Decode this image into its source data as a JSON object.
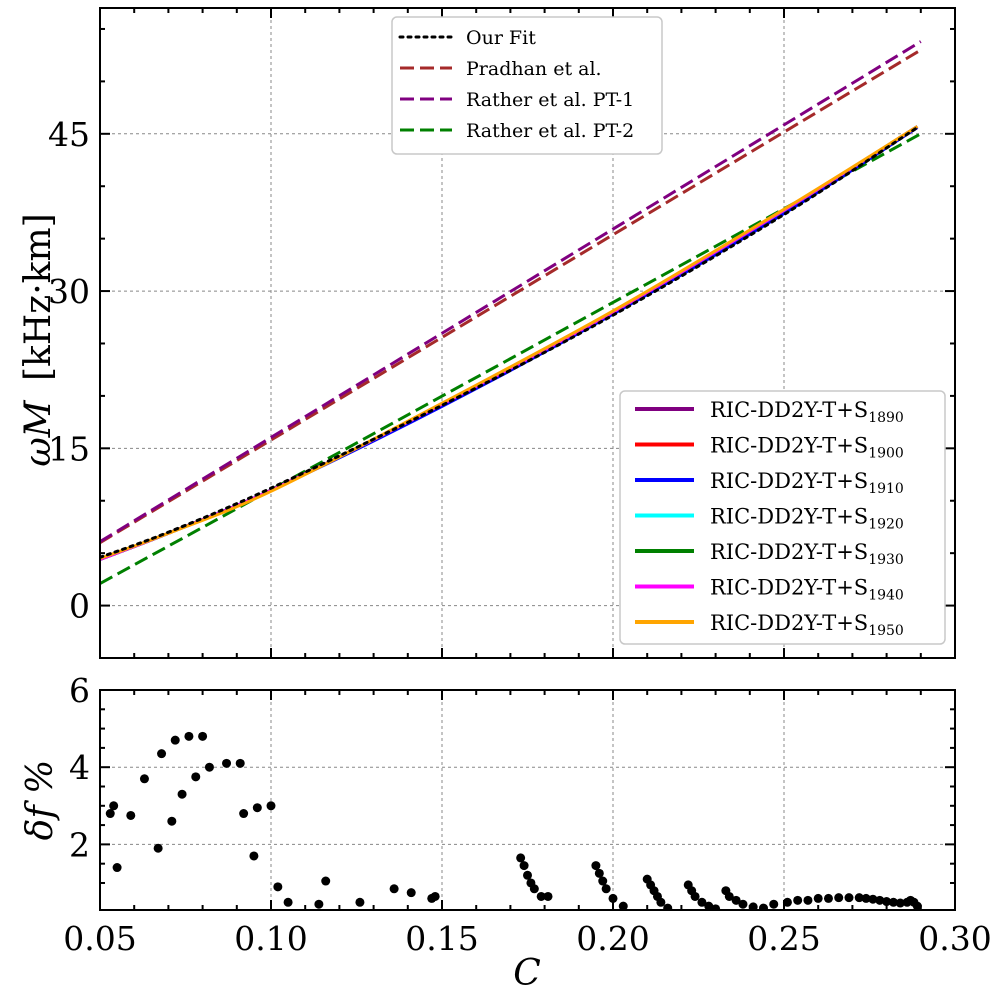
{
  "chart_data": [
    {
      "type": "line",
      "panel": "top",
      "xlabel": "C",
      "ylabel_symbol": "ωM",
      "ylabel_unit": "[kHz·km]",
      "xlim": [
        0.05,
        0.3
      ],
      "ylim": [
        -5,
        57
      ],
      "xticks": [
        0.05,
        0.1,
        0.15,
        0.2,
        0.25,
        0.3
      ],
      "yticks": [
        0,
        15,
        30,
        45
      ],
      "ytick_labels": [
        "0",
        "15",
        "30",
        "45"
      ],
      "grid": true,
      "legend_top": [
        {
          "label": "Our Fit",
          "color": "#000000",
          "style": "dotted"
        },
        {
          "label": "Pradhan et al.",
          "color": "#a52a2a",
          "style": "dashed"
        },
        {
          "label": "Rather et al. PT-1",
          "color": "#800080",
          "style": "dashed"
        },
        {
          "label": "Rather et al. PT-2",
          "color": "#008000",
          "style": "dashed"
        }
      ],
      "legend_right": [
        {
          "label": "RIC-DD2Y-T+S",
          "sub": "1890",
          "color": "#800080"
        },
        {
          "label": "RIC-DD2Y-T+S",
          "sub": "1900",
          "color": "#ff0000"
        },
        {
          "label": "RIC-DD2Y-T+S",
          "sub": "1910",
          "color": "#0000ff"
        },
        {
          "label": "RIC-DD2Y-T+S",
          "sub": "1920",
          "color": "#00ffff"
        },
        {
          "label": "RIC-DD2Y-T+S",
          "sub": "1930",
          "color": "#008000"
        },
        {
          "label": "RIC-DD2Y-T+S",
          "sub": "1940",
          "color": "#ff00ff"
        },
        {
          "label": "RIC-DD2Y-T+S",
          "sub": "1950",
          "color": "#ffa500"
        }
      ],
      "series": [
        {
          "name": "Pradhan et al.",
          "x": [
            0.05,
            0.29
          ],
          "y": [
            6.0,
            53.0
          ],
          "color": "#a52a2a",
          "style": "dashed"
        },
        {
          "name": "Rather et al. PT-1",
          "x": [
            0.05,
            0.29
          ],
          "y": [
            6.1,
            53.8
          ],
          "color": "#800080",
          "style": "dashed"
        },
        {
          "name": "Rather et al. PT-2",
          "x": [
            0.05,
            0.29
          ],
          "y": [
            2.1,
            45.0
          ],
          "color": "#008000",
          "style": "dashed"
        },
        {
          "name": "RIC-DD2Y-T+S1890",
          "x": [
            0.05,
            0.07,
            0.1,
            0.15,
            0.2,
            0.25,
            0.289
          ],
          "y": [
            4.4,
            6.9,
            11.0,
            19.1,
            27.9,
            37.5,
            45.6
          ],
          "color": "#800080",
          "style": "solid"
        },
        {
          "name": "RIC-DD2Y-T+S1900",
          "x": [
            0.05,
            0.07,
            0.1,
            0.15,
            0.2,
            0.25,
            0.289
          ],
          "y": [
            4.4,
            6.9,
            11.0,
            19.2,
            28.0,
            37.7,
            45.7
          ],
          "color": "#ff0000",
          "style": "solid"
        },
        {
          "name": "RIC-DD2Y-T+S1910",
          "x": [
            0.05,
            0.07,
            0.1,
            0.15,
            0.2,
            0.25,
            0.289
          ],
          "y": [
            4.4,
            6.9,
            11.0,
            19.0,
            27.8,
            37.4,
            45.6
          ],
          "color": "#0000ff",
          "style": "solid"
        },
        {
          "name": "RIC-DD2Y-T+S1920",
          "x": [
            0.05,
            0.07,
            0.1,
            0.15,
            0.2,
            0.25,
            0.289
          ],
          "y": [
            4.4,
            6.9,
            11.0,
            19.2,
            28.0,
            37.7,
            45.7
          ],
          "color": "#00ffff",
          "style": "solid"
        },
        {
          "name": "RIC-DD2Y-T+S1930",
          "x": [
            0.05,
            0.07,
            0.1,
            0.15,
            0.2,
            0.25,
            0.289
          ],
          "y": [
            4.4,
            6.9,
            11.0,
            19.2,
            28.0,
            37.7,
            45.7
          ],
          "color": "#008000",
          "style": "solid"
        },
        {
          "name": "RIC-DD2Y-T+S1940",
          "x": [
            0.05,
            0.07,
            0.1,
            0.15,
            0.2,
            0.25,
            0.289
          ],
          "y": [
            4.4,
            6.9,
            11.0,
            19.2,
            28.0,
            37.7,
            45.7
          ],
          "color": "#ff00ff",
          "style": "solid"
        },
        {
          "name": "RIC-DD2Y-T+S1950",
          "x": [
            0.05,
            0.07,
            0.1,
            0.15,
            0.2,
            0.25,
            0.289
          ],
          "y": [
            4.5,
            6.9,
            10.9,
            19.3,
            28.1,
            37.8,
            45.7
          ],
          "color": "#ffa500",
          "style": "solid"
        },
        {
          "name": "Our Fit",
          "x": [
            0.05,
            0.07,
            0.1,
            0.15,
            0.2,
            0.25,
            0.289
          ],
          "y": [
            4.6,
            7.0,
            11.2,
            19.1,
            27.7,
            37.3,
            45.6
          ],
          "color": "#000000",
          "style": "dotted"
        }
      ]
    },
    {
      "type": "scatter",
      "panel": "bottom",
      "xlabel": "C",
      "ylabel_symbol": "δf %",
      "xlim": [
        0.05,
        0.3
      ],
      "ylim": [
        0.3,
        6.0
      ],
      "xticks": [
        0.05,
        0.1,
        0.15,
        0.2,
        0.25,
        0.3
      ],
      "xtick_labels": [
        "0.05",
        "0.10",
        "0.15",
        "0.20",
        "0.25",
        "0.30"
      ],
      "yticks": [
        2,
        4,
        6
      ],
      "ytick_labels": [
        "2",
        "4",
        "6"
      ],
      "grid": true,
      "points": [
        [
          0.053,
          2.8
        ],
        [
          0.054,
          3.0
        ],
        [
          0.055,
          1.4
        ],
        [
          0.059,
          2.75
        ],
        [
          0.063,
          3.7
        ],
        [
          0.067,
          1.9
        ],
        [
          0.068,
          4.35
        ],
        [
          0.071,
          2.6
        ],
        [
          0.072,
          4.7
        ],
        [
          0.074,
          3.3
        ],
        [
          0.076,
          4.8
        ],
        [
          0.078,
          3.75
        ],
        [
          0.08,
          4.8
        ],
        [
          0.082,
          4.0
        ],
        [
          0.087,
          4.1
        ],
        [
          0.091,
          4.1
        ],
        [
          0.092,
          2.8
        ],
        [
          0.095,
          1.7
        ],
        [
          0.096,
          2.95
        ],
        [
          0.1,
          3.0
        ],
        [
          0.102,
          0.9
        ],
        [
          0.105,
          0.5
        ],
        [
          0.114,
          0.45
        ],
        [
          0.116,
          1.05
        ],
        [
          0.126,
          0.5
        ],
        [
          0.136,
          0.85
        ],
        [
          0.141,
          0.75
        ],
        [
          0.147,
          0.6
        ],
        [
          0.148,
          0.65
        ],
        [
          0.173,
          1.65
        ],
        [
          0.174,
          1.45
        ],
        [
          0.175,
          1.2
        ],
        [
          0.176,
          1.0
        ],
        [
          0.177,
          0.85
        ],
        [
          0.179,
          0.65
        ],
        [
          0.181,
          0.65
        ],
        [
          0.195,
          1.45
        ],
        [
          0.196,
          1.25
        ],
        [
          0.197,
          1.05
        ],
        [
          0.198,
          0.85
        ],
        [
          0.2,
          0.6
        ],
        [
          0.203,
          0.4
        ],
        [
          0.21,
          1.1
        ],
        [
          0.211,
          0.95
        ],
        [
          0.212,
          0.8
        ],
        [
          0.213,
          0.65
        ],
        [
          0.214,
          0.5
        ],
        [
          0.216,
          0.35
        ],
        [
          0.222,
          0.95
        ],
        [
          0.223,
          0.8
        ],
        [
          0.224,
          0.65
        ],
        [
          0.226,
          0.5
        ],
        [
          0.228,
          0.4
        ],
        [
          0.23,
          0.33
        ],
        [
          0.233,
          0.8
        ],
        [
          0.234,
          0.65
        ],
        [
          0.236,
          0.55
        ],
        [
          0.238,
          0.45
        ],
        [
          0.241,
          0.38
        ],
        [
          0.244,
          0.35
        ],
        [
          0.247,
          0.45
        ],
        [
          0.251,
          0.5
        ],
        [
          0.254,
          0.55
        ],
        [
          0.257,
          0.55
        ],
        [
          0.26,
          0.6
        ],
        [
          0.263,
          0.6
        ],
        [
          0.266,
          0.62
        ],
        [
          0.269,
          0.62
        ],
        [
          0.272,
          0.62
        ],
        [
          0.274,
          0.6
        ],
        [
          0.276,
          0.58
        ],
        [
          0.278,
          0.55
        ],
        [
          0.28,
          0.52
        ],
        [
          0.282,
          0.5
        ],
        [
          0.284,
          0.48
        ],
        [
          0.286,
          0.5
        ],
        [
          0.287,
          0.55
        ],
        [
          0.288,
          0.5
        ],
        [
          0.289,
          0.4
        ]
      ]
    }
  ]
}
